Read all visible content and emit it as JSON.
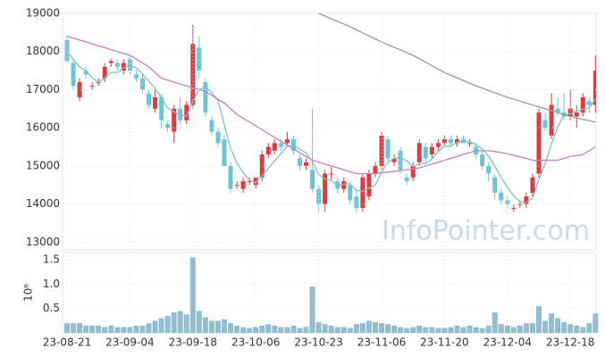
{
  "chart_data": {
    "type": "candlestick",
    "categories": [
      "23-08-21",
      null,
      null,
      null,
      null,
      null,
      null,
      null,
      null,
      null,
      "23-09-04",
      null,
      null,
      null,
      null,
      null,
      null,
      null,
      null,
      null,
      "23-09-18",
      null,
      null,
      null,
      null,
      null,
      null,
      null,
      null,
      null,
      "23-10-06",
      null,
      null,
      null,
      null,
      null,
      null,
      null,
      null,
      null,
      "23-10-23",
      null,
      null,
      null,
      null,
      null,
      null,
      null,
      null,
      null,
      "23-11-06",
      null,
      null,
      null,
      null,
      null,
      null,
      null,
      null,
      null,
      "23-11-20",
      null,
      null,
      null,
      null,
      null,
      null,
      null,
      null,
      null,
      "23-12-04",
      null,
      null,
      null,
      null,
      null,
      null,
      null,
      null,
      null,
      "23-12-18",
      null,
      null,
      null,
      null
    ],
    "open": [
      18300,
      17700,
      16800,
      17500,
      17100,
      17200,
      17300,
      17700,
      17700,
      17500,
      17800,
      17400,
      17300,
      16900,
      16500,
      16800,
      16100,
      15900,
      16500,
      16200,
      16600,
      18100,
      17200,
      16200,
      15900,
      15700,
      15000,
      14500,
      14400,
      14600,
      14500,
      14700,
      15300,
      15400,
      15600,
      15600,
      15700,
      15200,
      15000,
      14900,
      14400,
      14000,
      14800,
      14600,
      14400,
      14500,
      14200,
      13900,
      14200,
      14800,
      15000,
      15700,
      15100,
      15400,
      14700,
      14700,
      15100,
      15500,
      15300,
      15500,
      15600,
      15700,
      15600,
      15700,
      15600,
      15500,
      15300,
      15000,
      14700,
      14300,
      14100,
      13900,
      14000,
      14000,
      14300,
      14800,
      16200,
      15800,
      16500,
      16400,
      16300,
      16300,
      16400,
      16700,
      16600
    ],
    "high": [
      18400,
      17800,
      17300,
      17600,
      17200,
      17300,
      17700,
      17800,
      17800,
      17800,
      17900,
      17500,
      17400,
      17000,
      17000,
      16900,
      16200,
      16600,
      16800,
      16700,
      18700,
      18400,
      17300,
      16300,
      16000,
      15800,
      15100,
      14600,
      14700,
      14700,
      14700,
      15400,
      15600,
      15700,
      15700,
      15900,
      15800,
      15300,
      15200,
      16500,
      14500,
      14900,
      15000,
      14700,
      14700,
      14600,
      14400,
      14800,
      14900,
      15100,
      15900,
      15800,
      15300,
      15500,
      14800,
      15100,
      15700,
      15600,
      15600,
      15700,
      15800,
      15800,
      15800,
      15800,
      15700,
      15600,
      15400,
      15100,
      14800,
      14400,
      14200,
      14000,
      14100,
      14300,
      14800,
      16500,
      16400,
      16900,
      16800,
      16900,
      17000,
      16600,
      16900,
      16800,
      17900
    ],
    "low": [
      17700,
      17000,
      16700,
      17300,
      17000,
      17100,
      17200,
      17600,
      17500,
      17400,
      17400,
      17200,
      16900,
      16500,
      16400,
      16000,
      15900,
      15600,
      16100,
      16100,
      16500,
      17300,
      16300,
      15800,
      15500,
      15000,
      14300,
      14400,
      14300,
      14500,
      14400,
      14600,
      15200,
      15300,
      15400,
      15500,
      15300,
      14900,
      14900,
      14300,
      13800,
      13800,
      14600,
      14300,
      14300,
      14000,
      13800,
      13800,
      14100,
      14700,
      14900,
      15100,
      15000,
      14800,
      14500,
      14600,
      15000,
      15100,
      15200,
      15400,
      15500,
      15500,
      15500,
      15600,
      15500,
      15200,
      14900,
      14600,
      14100,
      14000,
      13900,
      13800,
      13900,
      13900,
      14200,
      14700,
      15900,
      15700,
      16300,
      16200,
      16200,
      16000,
      16300,
      16400,
      16400
    ],
    "close": [
      17750,
      17100,
      17200,
      17400,
      17100,
      17200,
      17600,
      17750,
      17600,
      17700,
      17500,
      17300,
      17000,
      16600,
      16800,
      16200,
      16000,
      16500,
      16200,
      16600,
      18200,
      17500,
      16400,
      15900,
      15600,
      15000,
      14400,
      14500,
      14600,
      14600,
      14700,
      15300,
      15500,
      15600,
      15500,
      15700,
      15400,
      15000,
      15100,
      14400,
      14000,
      14800,
      14800,
      14400,
      14600,
      14100,
      13900,
      14700,
      14800,
      15000,
      15800,
      15200,
      15200,
      14900,
      14600,
      15000,
      15600,
      15200,
      15500,
      15600,
      15700,
      15600,
      15700,
      15600,
      15600,
      15300,
      15000,
      14800,
      14300,
      14100,
      14000,
      13900,
      14000,
      14200,
      14700,
      16400,
      16000,
      16600,
      16400,
      16300,
      16500,
      16400,
      16800,
      16600,
      17500
    ],
    "up_color": "#e0393e",
    "down_color": "#6cc5d6",
    "series": [
      {
        "color": "#7cc4bd",
        "values": [
          18000,
          17800,
          17600,
          17500,
          17310,
          17200,
          17300,
          17450,
          17450,
          17570,
          17630,
          17570,
          17420,
          17220,
          17040,
          16780,
          16520,
          16420,
          16340,
          16300,
          16700,
          17000,
          17080,
          16920,
          16720,
          16080,
          15460,
          15080,
          14820,
          14620,
          14560,
          14740,
          14940,
          15140,
          15320,
          15520,
          15540,
          15440,
          15340,
          15120,
          14780,
          14660,
          14620,
          14480,
          14520,
          14540,
          14360,
          14340,
          14420,
          14500,
          14840,
          15100,
          15200,
          15220,
          15140,
          14980,
          15060,
          15060,
          15180,
          15380,
          15520,
          15520,
          15620,
          15640,
          15640,
          15560,
          15440,
          15260,
          15000,
          14700,
          14440,
          14220,
          14060,
          14040,
          14160,
          14640,
          15060,
          15580,
          16020,
          16340,
          16360,
          16440,
          16480,
          16520,
          16760
        ]
      },
      {
        "color": "#c77fc0",
        "values": [
          18400,
          18350,
          18300,
          18250,
          18200,
          18150,
          18100,
          18050,
          18000,
          17950,
          17900,
          17800,
          17700,
          17600,
          17450,
          17300,
          17250,
          17200,
          17150,
          17100,
          17050,
          17000,
          16950,
          16850,
          16750,
          16650,
          16500,
          16350,
          16250,
          16150,
          16050,
          15950,
          15850,
          15750,
          15650,
          15550,
          15450,
          15350,
          15250,
          15150,
          15100,
          15050,
          15000,
          14950,
          14900,
          14850,
          14800,
          14800,
          14800,
          14800,
          14820,
          14840,
          14860,
          14880,
          14900,
          14920,
          14950,
          15000,
          15050,
          15100,
          15150,
          15200,
          15250,
          15300,
          15350,
          15400,
          15400,
          15400,
          15380,
          15350,
          15320,
          15280,
          15240,
          15200,
          15150,
          15150,
          15150,
          15150,
          15150,
          15200,
          15250,
          15270,
          15300,
          15400,
          15500
        ]
      },
      {
        "color": "#9a9a9a",
        "values": [
          null,
          null,
          null,
          null,
          null,
          null,
          null,
          null,
          null,
          null,
          null,
          null,
          null,
          null,
          null,
          null,
          null,
          null,
          null,
          null,
          null,
          null,
          null,
          null,
          null,
          null,
          null,
          null,
          null,
          null,
          null,
          null,
          null,
          null,
          null,
          null,
          null,
          null,
          null,
          null,
          19000,
          18930,
          18860,
          18790,
          18720,
          18650,
          18570,
          18490,
          18410,
          18330,
          18250,
          18180,
          18110,
          18040,
          17970,
          17900,
          17810,
          17720,
          17630,
          17540,
          17450,
          17380,
          17310,
          17240,
          17170,
          17100,
          17040,
          16980,
          16920,
          16860,
          16800,
          16750,
          16700,
          16650,
          16600,
          16550,
          16500,
          16450,
          16400,
          16350,
          16300,
          16260,
          16220,
          16190,
          16150
        ]
      }
    ],
    "ylim": [
      12800,
      19000
    ],
    "yticks": [
      13000,
      14000,
      15000,
      16000,
      17000,
      18000,
      19000
    ],
    "grid": true,
    "watermark": "InfoPointer.com",
    "volume": {
      "ylabel": "10⁶",
      "color": "#92bccf",
      "values": [
        0.2,
        0.2,
        0.2,
        0.15,
        0.15,
        0.15,
        0.12,
        0.15,
        0.12,
        0.12,
        0.12,
        0.15,
        0.15,
        0.2,
        0.25,
        0.3,
        0.35,
        0.42,
        0.45,
        0.38,
        1.55,
        0.45,
        0.32,
        0.25,
        0.25,
        0.28,
        0.2,
        0.15,
        0.12,
        0.1,
        0.12,
        0.15,
        0.18,
        0.15,
        0.12,
        0.12,
        0.15,
        0.1,
        0.12,
        0.95,
        0.22,
        0.18,
        0.15,
        0.12,
        0.12,
        0.1,
        0.18,
        0.2,
        0.25,
        0.22,
        0.2,
        0.18,
        0.15,
        0.12,
        0.1,
        0.12,
        0.15,
        0.12,
        0.12,
        0.1,
        0.1,
        0.12,
        0.15,
        0.12,
        0.15,
        0.12,
        0.1,
        0.15,
        0.42,
        0.18,
        0.15,
        0.12,
        0.15,
        0.2,
        0.2,
        0.55,
        0.25,
        0.4,
        0.3,
        0.22,
        0.18,
        0.15,
        0.12,
        0.2,
        0.4
      ],
      "ylim": [
        0,
        1.65
      ],
      "yticks": [
        0.5,
        {
          "value": 1,
          "label": "1.0"
        },
        1.5
      ]
    }
  }
}
